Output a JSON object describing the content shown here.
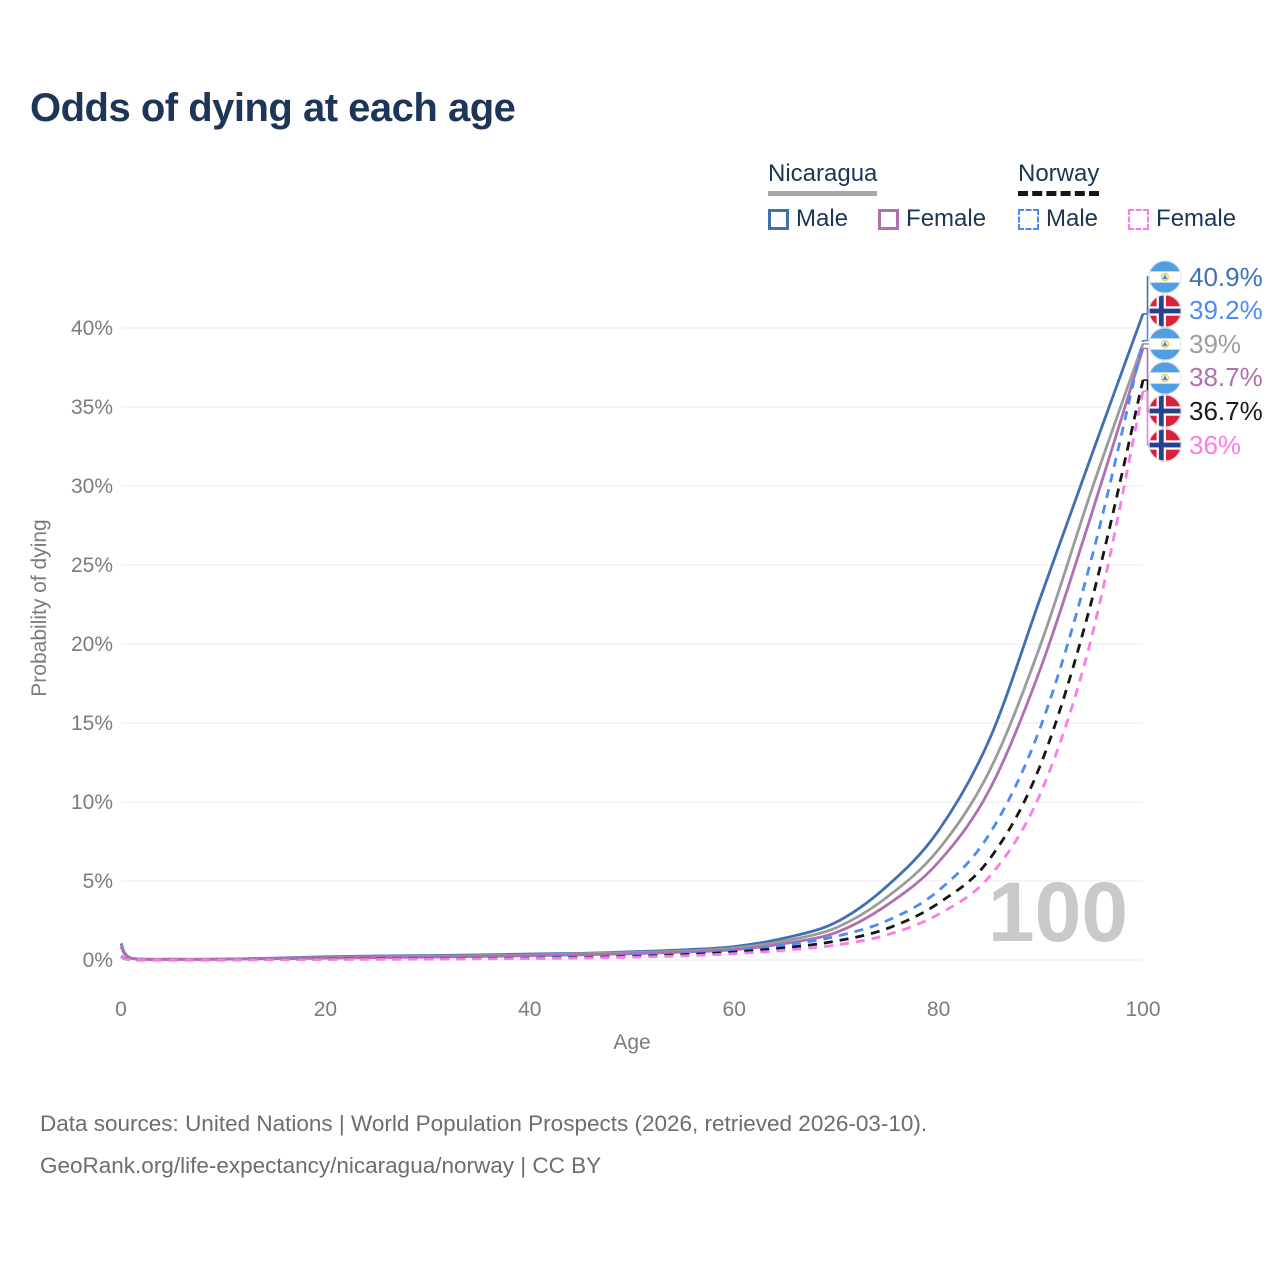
{
  "title": "Odds of dying at each age",
  "watermark": "100",
  "colors": {
    "title": "#1d3557",
    "legend_text": "#1d3557",
    "axis_text": "#7c7c7c",
    "gridline": "#ebebeb",
    "watermark": "#c9c9c9",
    "footer": "#6d6d6d",
    "nicaragua_underline": "#a8a8a8",
    "norway_underline": "#161616"
  },
  "legend": {
    "groups": [
      {
        "name": "Nicaragua",
        "line_style": "solid",
        "items": [
          {
            "label": "Male",
            "color": "#3f6fb5",
            "dashed": false
          },
          {
            "label": "Female",
            "color": "#b070b0",
            "dashed": false
          }
        ]
      },
      {
        "name": "Norway",
        "line_style": "dashed",
        "items": [
          {
            "label": "Male",
            "color": "#4b8bf2",
            "dashed": true
          },
          {
            "label": "Female",
            "color": "#fb7ce8",
            "dashed": true
          }
        ]
      }
    ]
  },
  "chart_data": {
    "type": "line",
    "title": "Odds of dying at each age",
    "xlabel": "Age",
    "ylabel": "Probability of dying",
    "xlim": [
      0,
      100
    ],
    "ylim_percent": [
      0,
      43
    ],
    "grid": "horizontal",
    "x_ticks": [
      0,
      20,
      40,
      60,
      80,
      100
    ],
    "x_tick_labels": [
      "0",
      "20",
      "40",
      "60",
      "80",
      "100"
    ],
    "y_ticks": [
      0,
      5,
      10,
      15,
      20,
      25,
      30,
      35,
      40
    ],
    "y_tick_labels": [
      "0%",
      "5%",
      "10%",
      "15%",
      "20%",
      "25%",
      "30%",
      "35%",
      "40%"
    ],
    "x": [
      0,
      1,
      5,
      10,
      15,
      20,
      25,
      30,
      35,
      40,
      45,
      50,
      55,
      60,
      65,
      70,
      75,
      80,
      85,
      90,
      95,
      100
    ],
    "series": [
      {
        "id": "nicaragua-male",
        "name": "Nicaragua Male",
        "country": "nicaragua",
        "sex": "male",
        "color": "#3f6fb5",
        "dashed": false,
        "end_label": "40.9%",
        "values": [
          1.05,
          0.12,
          0.05,
          0.06,
          0.12,
          0.2,
          0.25,
          0.28,
          0.32,
          0.38,
          0.42,
          0.52,
          0.64,
          0.85,
          1.4,
          2.4,
          4.7,
          8.2,
          14.0,
          23.0,
          32.0,
          40.9
        ]
      },
      {
        "id": "nicaragua-both",
        "name": "Nicaragua",
        "country": "nicaragua",
        "sex": "both",
        "color": "#9b9b9b",
        "dashed": false,
        "end_label": "39%",
        "values": [
          0.95,
          0.11,
          0.04,
          0.05,
          0.1,
          0.16,
          0.2,
          0.23,
          0.27,
          0.32,
          0.39,
          0.47,
          0.57,
          0.75,
          1.22,
          2.05,
          4.0,
          7.0,
          12.0,
          20.0,
          29.8,
          39.0
        ]
      },
      {
        "id": "nicaragua-female",
        "name": "Nicaragua Female",
        "country": "nicaragua",
        "sex": "female",
        "color": "#b070b0",
        "dashed": false,
        "end_label": "38.7%",
        "values": [
          0.85,
          0.1,
          0.04,
          0.05,
          0.08,
          0.12,
          0.15,
          0.18,
          0.22,
          0.27,
          0.33,
          0.4,
          0.5,
          0.65,
          1.05,
          1.75,
          3.5,
          6.2,
          10.8,
          18.5,
          28.3,
          38.7
        ]
      },
      {
        "id": "norway-male",
        "name": "Norway Male",
        "country": "norway",
        "sex": "male",
        "color": "#4b8bf2",
        "dashed": true,
        "end_label": "39.2%",
        "values": [
          0.22,
          0.02,
          0.01,
          0.01,
          0.04,
          0.07,
          0.08,
          0.09,
          0.11,
          0.13,
          0.18,
          0.26,
          0.4,
          0.6,
          0.95,
          1.5,
          2.5,
          4.4,
          8.0,
          14.8,
          25.5,
          39.2
        ]
      },
      {
        "id": "norway-both",
        "name": "Norway",
        "country": "norway",
        "sex": "both",
        "color": "#161616",
        "dashed": true,
        "end_label": "36.7%",
        "values": [
          0.2,
          0.02,
          0.01,
          0.01,
          0.03,
          0.05,
          0.06,
          0.07,
          0.09,
          0.11,
          0.15,
          0.22,
          0.33,
          0.5,
          0.78,
          1.2,
          2.0,
          3.6,
          6.4,
          12.4,
          22.8,
          36.7
        ]
      },
      {
        "id": "norway-female",
        "name": "Norway Female",
        "country": "norway",
        "sex": "female",
        "color": "#fb7ce8",
        "dashed": true,
        "end_label": "36%",
        "values": [
          0.18,
          0.02,
          0.01,
          0.01,
          0.02,
          0.03,
          0.04,
          0.05,
          0.07,
          0.09,
          0.12,
          0.18,
          0.26,
          0.4,
          0.62,
          0.95,
          1.6,
          2.9,
          5.3,
          10.6,
          20.5,
          36.0
        ]
      }
    ],
    "legend_position": "top-right"
  },
  "end_labels": [
    {
      "text": "40.9%",
      "country": "nicaragua",
      "series_index": 0,
      "color": "#3f6fb5"
    },
    {
      "text": "39.2%",
      "country": "norway",
      "series_index": 3,
      "color": "#4b8bf2"
    },
    {
      "text": "39%",
      "country": "nicaragua",
      "series_index": 1,
      "color": "#9e9e9e"
    },
    {
      "text": "38.7%",
      "country": "nicaragua",
      "series_index": 2,
      "color": "#b070b0"
    },
    {
      "text": "36.7%",
      "country": "norway",
      "series_index": 4,
      "color": "#1a1a1a"
    },
    {
      "text": "36%",
      "country": "norway",
      "series_index": 5,
      "color": "#fb7ce8"
    }
  ],
  "footer": {
    "line1": "Data sources: United Nations | World Population Prospects (2026, retrieved 2026-03-10).",
    "line2": "GeoRank.org/life-expectancy/nicaragua/norway | CC BY"
  }
}
